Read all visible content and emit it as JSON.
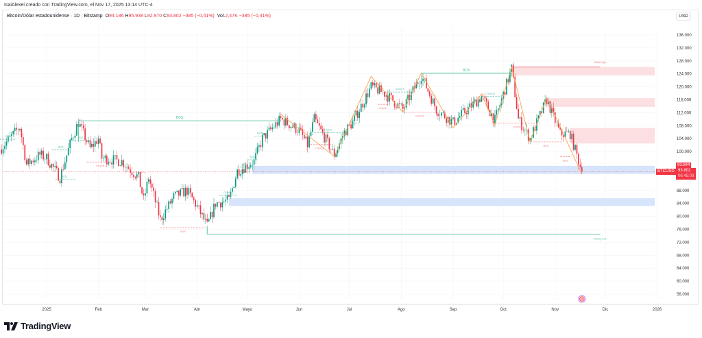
{
  "credit": "IsaiAlexei creado con TradingView.com, el Nov 17, 2025 13:14 UTC-4",
  "legend": {
    "symbol": "Bitcoin/Dólar estadounidense · 1D · Bitstamp",
    "o_label": "O",
    "o": "94.186",
    "h_label": "H",
    "h": "95.938",
    "l_label": "L",
    "l": "92.970",
    "c_label": "C",
    "c": "93.802",
    "change": "−385 (−0,41%)",
    "vol_label": "Vol.",
    "vol": "2,47K",
    "vol_change": "−385 (−0,41%)"
  },
  "currency": "USD",
  "price_tags": {
    "last_high": "93.844",
    "ticker": "BTCUSD",
    "last": "93.802",
    "countdown": "06:45:08"
  },
  "brand": "TradingView",
  "colors": {
    "up": "#089981",
    "down": "#f23645",
    "zigzag": "#f7a24b",
    "supply": "#fcdfe1",
    "demand": "#d6e4fc",
    "bull_line": "#4fbfa5",
    "bear_line": "#f7787f"
  },
  "chart_data": {
    "type": "candlestick",
    "y_ticks": [
      "136.000",
      "132.000",
      "128.000",
      "124.000",
      "120.000",
      "116.000",
      "112.000",
      "108.000",
      "104.000",
      "100.000",
      "88.000",
      "84.000",
      "80.000",
      "76.000",
      "72.000",
      "68.000",
      "64.000",
      "60.000",
      "56.000"
    ],
    "x_ticks": [
      "2025",
      "Feb",
      "Mar",
      "Abr",
      "Mayo",
      "Jun",
      "Jul",
      "Ago",
      "Sep",
      "Oct",
      "Nov",
      "Dic",
      "2026"
    ],
    "price_path": [
      [
        "2024-12-04",
        100600
      ],
      [
        "2024-12-16",
        107600
      ],
      [
        "2024-12-20",
        96000
      ],
      [
        "2024-12-28",
        99000
      ],
      [
        "2025-01-01",
        98000
      ],
      [
        "2025-01-09",
        92000
      ],
      [
        "2025-01-16",
        104000
      ],
      [
        "2025-01-20",
        109000
      ],
      [
        "2025-01-27",
        101000
      ],
      [
        "2025-02-01",
        104000
      ],
      [
        "2025-02-03",
        98000
      ],
      [
        "2025-02-15",
        97000
      ],
      [
        "2025-02-25",
        92000
      ],
      [
        "2025-02-28",
        85000
      ],
      [
        "2025-03-03",
        92000
      ],
      [
        "2025-03-10",
        79000
      ],
      [
        "2025-03-18",
        86000
      ],
      [
        "2025-03-26",
        88000
      ],
      [
        "2025-04-01",
        83000
      ],
      [
        "2025-04-07",
        77000
      ],
      [
        "2025-04-12",
        84000
      ],
      [
        "2025-04-20",
        85000
      ],
      [
        "2025-04-25",
        94000
      ],
      [
        "2025-05-05",
        97000
      ],
      [
        "2025-05-10",
        104000
      ],
      [
        "2025-05-21",
        110000
      ],
      [
        "2025-06-01",
        106500
      ],
      [
        "2025-06-06",
        102000
      ],
      [
        "2025-06-10",
        110000
      ],
      [
        "2025-06-22",
        99000
      ],
      [
        "2025-06-28",
        106000
      ],
      [
        "2025-07-03",
        109000
      ],
      [
        "2025-07-14",
        120000
      ],
      [
        "2025-07-22",
        118000
      ],
      [
        "2025-08-02",
        113000
      ],
      [
        "2025-08-13",
        123500
      ],
      [
        "2025-08-22",
        113000
      ],
      [
        "2025-09-01",
        109000
      ],
      [
        "2025-09-18",
        117000
      ],
      [
        "2025-09-26",
        109700
      ],
      [
        "2025-10-06",
        125600
      ],
      [
        "2025-10-10",
        110000
      ],
      [
        "2025-10-17",
        104000
      ],
      [
        "2025-10-27",
        116000
      ],
      [
        "2025-11-04",
        105500
      ],
      [
        "2025-11-10",
        105500
      ],
      [
        "2025-11-17",
        93802
      ]
    ],
    "zigzag": [
      [
        "2025-05-21",
        111500
      ],
      [
        "2025-06-22",
        98500
      ],
      [
        "2025-07-14",
        123200
      ],
      [
        "2025-08-02",
        112200
      ],
      [
        "2025-08-13",
        124200
      ],
      [
        "2025-09-01",
        107300
      ],
      [
        "2025-09-18",
        117800
      ],
      [
        "2025-09-26",
        108200
      ],
      [
        "2025-10-06",
        126100
      ],
      [
        "2025-10-17",
        103000
      ],
      [
        "2025-10-27",
        116700
      ],
      [
        "2025-11-17",
        93000
      ]
    ],
    "zones": [
      {
        "kind": "supply",
        "from": "2025-10-06",
        "top": 126100,
        "bottom": 123500
      },
      {
        "kind": "supply",
        "from": "2025-10-27",
        "top": 116500,
        "bottom": 113800
      },
      {
        "kind": "supply",
        "from": "2025-11-10",
        "top": 107300,
        "bottom": 102500
      },
      {
        "kind": "demand",
        "from": "2025-05-04",
        "top": 95600,
        "bottom": 93100
      },
      {
        "kind": "demand",
        "from": "2025-04-20",
        "top": 85600,
        "bottom": 83200
      }
    ],
    "levels": [
      {
        "label": "BOS",
        "from": "2025-01-20",
        "to": "2025-05-21",
        "price": 109500,
        "color": "bull",
        "style": "solid"
      },
      {
        "label": "BOS",
        "from": "2025-08-13",
        "to": "2025-10-06",
        "price": 124200,
        "color": "bull",
        "style": "solid"
      },
      {
        "label": "Weak High",
        "from": "2025-10-06",
        "to": "2025-11-28",
        "price": 126100,
        "color": "bear",
        "style": "solid"
      },
      {
        "label": "Strong Low",
        "from": "2025-04-07",
        "to": "2025-11-28",
        "price": 74500,
        "color": "bull",
        "style": "solid"
      },
      {
        "label": "BOS",
        "from": "2024-12-04",
        "to": "2024-12-14",
        "price": 103800,
        "color": "bull",
        "style": "dash"
      },
      {
        "label": "BOS",
        "from": "2025-01-04",
        "to": "2025-01-15",
        "price": 100500,
        "color": "bull",
        "style": "dash"
      },
      {
        "label": "BOS",
        "from": "2025-01-16",
        "to": "2025-01-27",
        "price": 103400,
        "color": "bull",
        "style": "dash"
      },
      {
        "label": "EQL",
        "from": "2025-01-06",
        "to": "2025-01-18",
        "price": 91500,
        "color": "bull",
        "style": "dot"
      },
      {
        "label": "CHoCH",
        "from": "2025-01-25",
        "to": "2025-02-10",
        "price": 96800,
        "color": "bear",
        "style": "dash"
      },
      {
        "label": "BOS",
        "from": "2025-02-20",
        "to": "2025-03-01",
        "price": 93500,
        "color": "bear",
        "style": "dash"
      },
      {
        "label": "BOS",
        "from": "2025-03-10",
        "to": "2025-04-06",
        "price": 76500,
        "color": "bear",
        "style": "dash"
      },
      {
        "label": "CHoCH",
        "from": "2025-04-14",
        "to": "2025-04-25",
        "price": 86500,
        "color": "bull",
        "style": "dash"
      },
      {
        "label": "BOS",
        "from": "2025-04-25",
        "to": "2025-05-04",
        "price": 95200,
        "color": "bull",
        "style": "dash"
      },
      {
        "label": "BOS",
        "from": "2025-05-01",
        "to": "2025-05-07",
        "price": 97500,
        "color": "bull",
        "style": "dash"
      },
      {
        "label": "BOS",
        "from": "2025-05-05",
        "to": "2025-05-12",
        "price": 104800,
        "color": "bull",
        "style": "dash"
      },
      {
        "label": "CHoCH",
        "from": "2025-06-10",
        "to": "2025-06-26",
        "price": 105800,
        "color": "bull",
        "style": "dash"
      },
      {
        "label": "CHoCH",
        "from": "2025-06-06",
        "to": "2025-06-20",
        "price": 102200,
        "color": "bear",
        "style": "dash"
      },
      {
        "label": "BOS",
        "from": "2025-07-01",
        "to": "2025-07-07",
        "price": 108800,
        "color": "bull",
        "style": "dash"
      },
      {
        "label": "CHoCH",
        "from": "2025-07-22",
        "to": "2025-08-09",
        "price": 118400,
        "color": "bull",
        "style": "dash"
      },
      {
        "label": "CHoCH",
        "from": "2025-07-18",
        "to": "2025-07-24",
        "price": 114600,
        "color": "bear",
        "style": "dash"
      },
      {
        "label": "CHoCH",
        "from": "2025-08-02",
        "to": "2025-08-22",
        "price": 112200,
        "color": "bear",
        "style": "dash"
      },
      {
        "label": "CHoCH",
        "from": "2025-09-18",
        "to": "2025-09-29",
        "price": 117000,
        "color": "bull",
        "style": "dash"
      },
      {
        "label": "CHoCH",
        "from": "2025-09-26",
        "to": "2025-10-23",
        "price": 108800,
        "color": "bear",
        "style": "dash"
      },
      {
        "label": "BOS",
        "from": "2025-10-17",
        "to": "2025-11-05",
        "price": 103000,
        "color": "bear",
        "style": "dash"
      },
      {
        "label": "BOS",
        "from": "2025-11-04",
        "to": "2025-11-10",
        "price": 98400,
        "color": "bear",
        "style": "dash"
      }
    ],
    "last_price": 93802
  }
}
